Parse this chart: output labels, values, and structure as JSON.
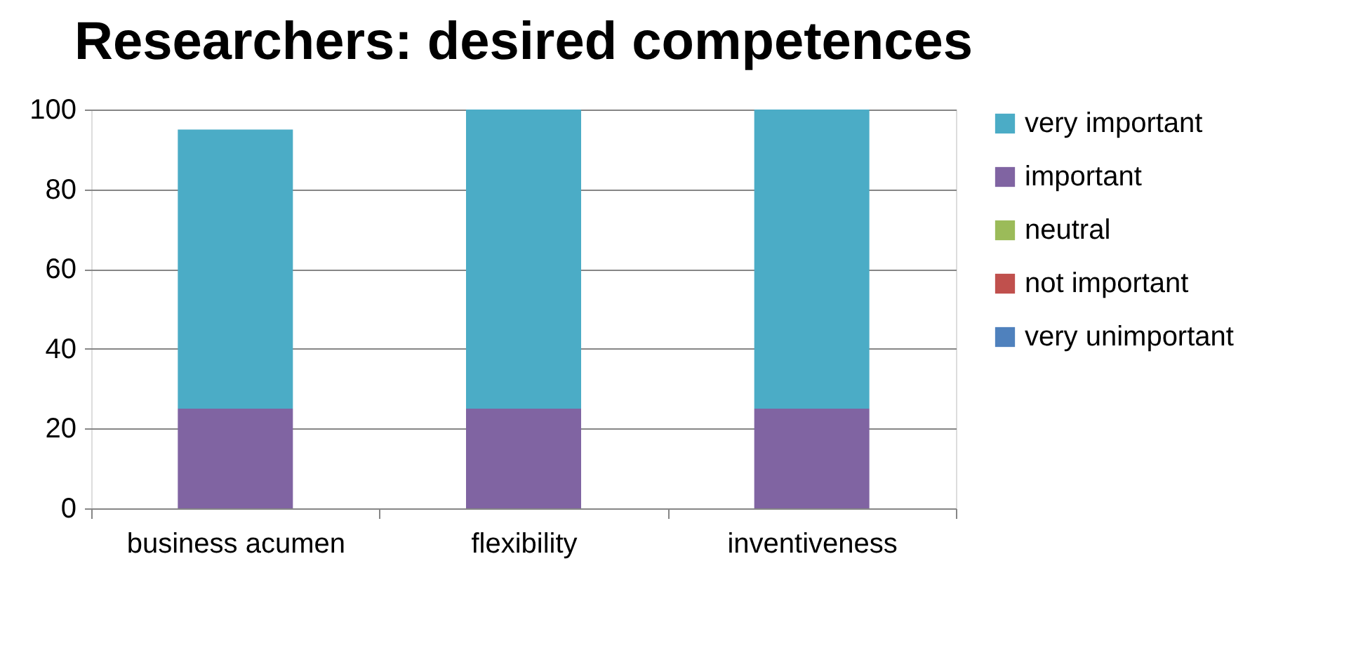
{
  "chart_data": {
    "type": "bar",
    "title": "Researchers: desired competences",
    "categories": [
      "business acumen",
      "flexibility",
      "inventiveness"
    ],
    "stacked": true,
    "series": [
      {
        "name": "very unimportant",
        "color": "#4f81bd",
        "values": [
          0,
          0,
          0
        ]
      },
      {
        "name": "not important",
        "color": "#c0504d",
        "values": [
          0,
          0,
          0
        ]
      },
      {
        "name": "neutral",
        "color": "#9bbb59",
        "values": [
          0,
          0,
          0
        ]
      },
      {
        "name": "important",
        "color": "#8064a2",
        "values": [
          25,
          25,
          25
        ]
      },
      {
        "name": "very important",
        "color": "#4bacc6",
        "values": [
          70,
          75,
          75
        ]
      }
    ],
    "ylim": [
      0,
      100
    ],
    "yticks": [
      0,
      20,
      40,
      60,
      80,
      100
    ],
    "grid": "y",
    "legend": "right"
  }
}
